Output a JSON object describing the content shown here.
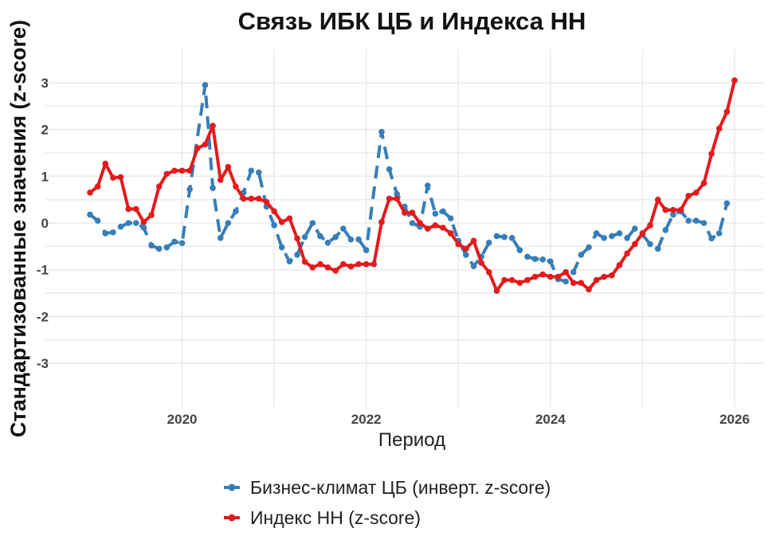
{
  "chart_data": {
    "type": "line",
    "title": "Связь ИБК ЦБ и Индекса НН",
    "xlabel": "Период",
    "ylabel": "Стандартизованные значения (z-score)",
    "xlim": [
      2019.0,
      2026.0
    ],
    "ylim": [
      -3.8,
      3.9
    ],
    "x_ticks": [
      2020,
      2022,
      2024,
      2026
    ],
    "x_tick_labels": [
      "2020",
      "2022",
      "2024",
      "2026"
    ],
    "y_ticks": [
      -3,
      -2,
      -1,
      0,
      1,
      2,
      3
    ],
    "y_tick_labels": [
      "-3",
      "-2",
      "-1",
      "0",
      "1",
      "2",
      "3"
    ],
    "grid": true,
    "legend_position": "bottom",
    "series": [
      {
        "name": "Бизнес-климат ЦБ (инверт. z-score)",
        "color": "#377eb8",
        "line_style": "dashed",
        "x": [
          2019.0,
          2019.083,
          2019.167,
          2019.25,
          2019.333,
          2019.417,
          2019.5,
          2019.583,
          2019.667,
          2019.75,
          2019.833,
          2019.917,
          2020.0,
          2020.083,
          2020.25,
          2020.333,
          2020.417,
          2020.5,
          2020.583,
          2020.667,
          2020.75,
          2020.833,
          2020.917,
          2021.0,
          2021.083,
          2021.167,
          2021.25,
          2021.333,
          2021.417,
          2021.5,
          2021.583,
          2021.667,
          2021.75,
          2021.833,
          2021.917,
          2022.0,
          2022.167,
          2022.25,
          2022.333,
          2022.417,
          2022.5,
          2022.583,
          2022.667,
          2022.75,
          2022.833,
          2022.917,
          2023.0,
          2023.083,
          2023.167,
          2023.25,
          2023.333,
          2023.417,
          2023.5,
          2023.583,
          2023.667,
          2023.75,
          2023.833,
          2023.917,
          2024.0,
          2024.083,
          2024.167,
          2024.25,
          2024.333,
          2024.417,
          2024.5,
          2024.583,
          2024.667,
          2024.75,
          2024.833,
          2024.917,
          2025.0,
          2025.083,
          2025.167,
          2025.25,
          2025.333,
          2025.417,
          2025.5,
          2025.583,
          2025.667,
          2025.75,
          2025.833,
          2025.917
        ],
        "y": [
          0.18,
          0.05,
          -0.22,
          -0.2,
          -0.08,
          0.0,
          0.0,
          -0.1,
          -0.48,
          -0.55,
          -0.52,
          -0.4,
          -0.43,
          0.72,
          2.95,
          0.75,
          -0.32,
          0.0,
          0.25,
          0.65,
          1.12,
          1.08,
          0.35,
          -0.05,
          -0.52,
          -0.82,
          -0.68,
          -0.3,
          0.0,
          -0.28,
          -0.42,
          -0.3,
          -0.12,
          -0.35,
          -0.35,
          -0.58,
          1.95,
          1.15,
          0.62,
          0.35,
          0.0,
          -0.08,
          0.8,
          0.2,
          0.25,
          0.1,
          -0.38,
          -0.68,
          -0.92,
          -0.72,
          -0.42,
          -0.28,
          -0.3,
          -0.32,
          -0.58,
          -0.72,
          -0.77,
          -0.78,
          -0.82,
          -1.2,
          -1.25,
          -1.05,
          -0.68,
          -0.52,
          -0.22,
          -0.32,
          -0.28,
          -0.22,
          -0.32,
          -0.12,
          -0.25,
          -0.45,
          -0.55,
          -0.15,
          0.18,
          0.25,
          0.05,
          0.05,
          0.0,
          -0.33,
          -0.22,
          0.42
        ]
      },
      {
        "name": "Индекс НН (z-score)",
        "color": "#e41a1c",
        "line_style": "solid",
        "x": [
          2019.0,
          2019.083,
          2019.167,
          2019.25,
          2019.333,
          2019.417,
          2019.5,
          2019.583,
          2019.667,
          2019.75,
          2019.833,
          2019.917,
          2020.0,
          2020.083,
          2020.167,
          2020.25,
          2020.333,
          2020.417,
          2020.5,
          2020.583,
          2020.667,
          2020.75,
          2020.833,
          2020.917,
          2021.0,
          2021.083,
          2021.167,
          2021.25,
          2021.333,
          2021.417,
          2021.5,
          2021.583,
          2021.667,
          2021.75,
          2021.833,
          2021.917,
          2022.0,
          2022.083,
          2022.167,
          2022.25,
          2022.333,
          2022.417,
          2022.5,
          2022.583,
          2022.667,
          2022.75,
          2022.833,
          2022.917,
          2023.0,
          2023.083,
          2023.167,
          2023.25,
          2023.333,
          2023.417,
          2023.5,
          2023.583,
          2023.667,
          2023.75,
          2023.833,
          2023.917,
          2024.0,
          2024.083,
          2024.167,
          2024.25,
          2024.333,
          2024.417,
          2024.5,
          2024.583,
          2024.667,
          2024.75,
          2024.833,
          2024.917,
          2025.0,
          2025.083,
          2025.167,
          2025.25,
          2025.333,
          2025.417,
          2025.5,
          2025.583,
          2025.667,
          2025.75,
          2025.833,
          2025.917,
          2026.0
        ],
        "y": [
          0.65,
          0.78,
          1.27,
          0.97,
          0.98,
          0.3,
          0.3,
          0.02,
          0.17,
          0.78,
          1.05,
          1.12,
          1.12,
          1.12,
          1.6,
          1.68,
          2.08,
          0.92,
          1.2,
          0.78,
          0.52,
          0.52,
          0.52,
          0.45,
          0.25,
          0.02,
          0.1,
          -0.33,
          -0.83,
          -0.95,
          -0.88,
          -0.95,
          -1.02,
          -0.88,
          -0.93,
          -0.88,
          -0.88,
          -0.88,
          0.02,
          0.52,
          0.52,
          0.22,
          0.22,
          0.0,
          -0.12,
          -0.05,
          -0.1,
          -0.22,
          -0.45,
          -0.55,
          -0.38,
          -0.85,
          -1.05,
          -1.45,
          -1.22,
          -1.22,
          -1.28,
          -1.22,
          -1.15,
          -1.1,
          -1.15,
          -1.15,
          -1.05,
          -1.28,
          -1.28,
          -1.42,
          -1.22,
          -1.15,
          -1.12,
          -0.9,
          -0.65,
          -0.45,
          -0.22,
          -0.05,
          0.5,
          0.28,
          0.28,
          0.28,
          0.58,
          0.65,
          0.85,
          1.48,
          2.02,
          2.38,
          3.05
        ]
      }
    ]
  }
}
